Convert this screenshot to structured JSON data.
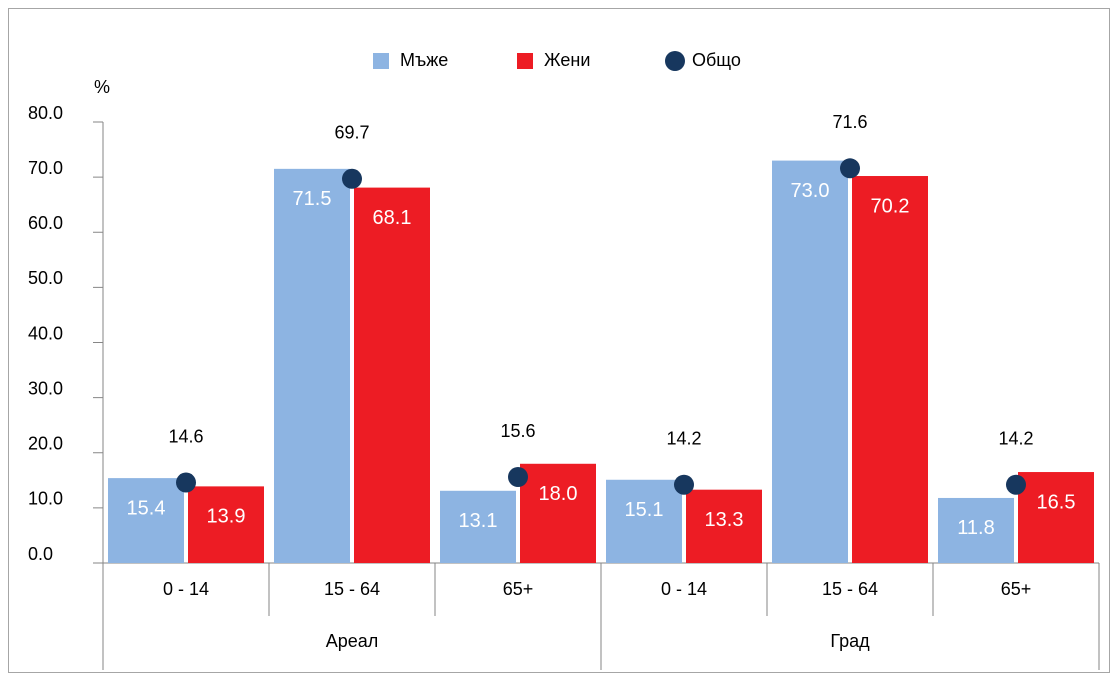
{
  "chart_data": {
    "type": "bar",
    "y_label": "%",
    "categories": [
      "0 - 14",
      "15 - 64",
      "65+",
      "0 - 14",
      "15 - 64",
      "65+"
    ],
    "category_groups": [
      "Ареал",
      "Град"
    ],
    "series": [
      {
        "name": "Мъже",
        "color": "#8db4e2",
        "values": [
          15.4,
          71.5,
          13.1,
          15.1,
          73.0,
          11.8
        ],
        "value_labels": [
          "15.4",
          "71.5",
          "13.1",
          "15.1",
          "73.0",
          "11.8"
        ]
      },
      {
        "name": "Жени",
        "color": "#ed1c24",
        "values": [
          13.9,
          68.1,
          18.0,
          13.3,
          70.2,
          16.5
        ],
        "value_labels": [
          "13.9",
          "68.1",
          "18.0",
          "13.3",
          "70.2",
          "16.5"
        ]
      },
      {
        "name": "Общо",
        "type": "scatter",
        "color": "#17375e",
        "values": [
          14.6,
          69.7,
          15.6,
          14.2,
          71.6,
          14.2
        ],
        "value_labels": [
          "14.6",
          "69.7",
          "15.6",
          "14.2",
          "71.6",
          "14.2"
        ]
      }
    ],
    "ylim": [
      0,
      80
    ],
    "yticks": [
      {
        "value": 0,
        "label": "0.0"
      },
      {
        "value": 10,
        "label": "10.0"
      },
      {
        "value": 20,
        "label": "20.0"
      },
      {
        "value": 30,
        "label": "30.0"
      },
      {
        "value": 40,
        "label": "40.0"
      },
      {
        "value": 50,
        "label": "50.0"
      },
      {
        "value": 60,
        "label": "60.0"
      },
      {
        "value": 70,
        "label": "70.0"
      },
      {
        "value": 80,
        "label": "80.0"
      }
    ],
    "legend": "top"
  }
}
